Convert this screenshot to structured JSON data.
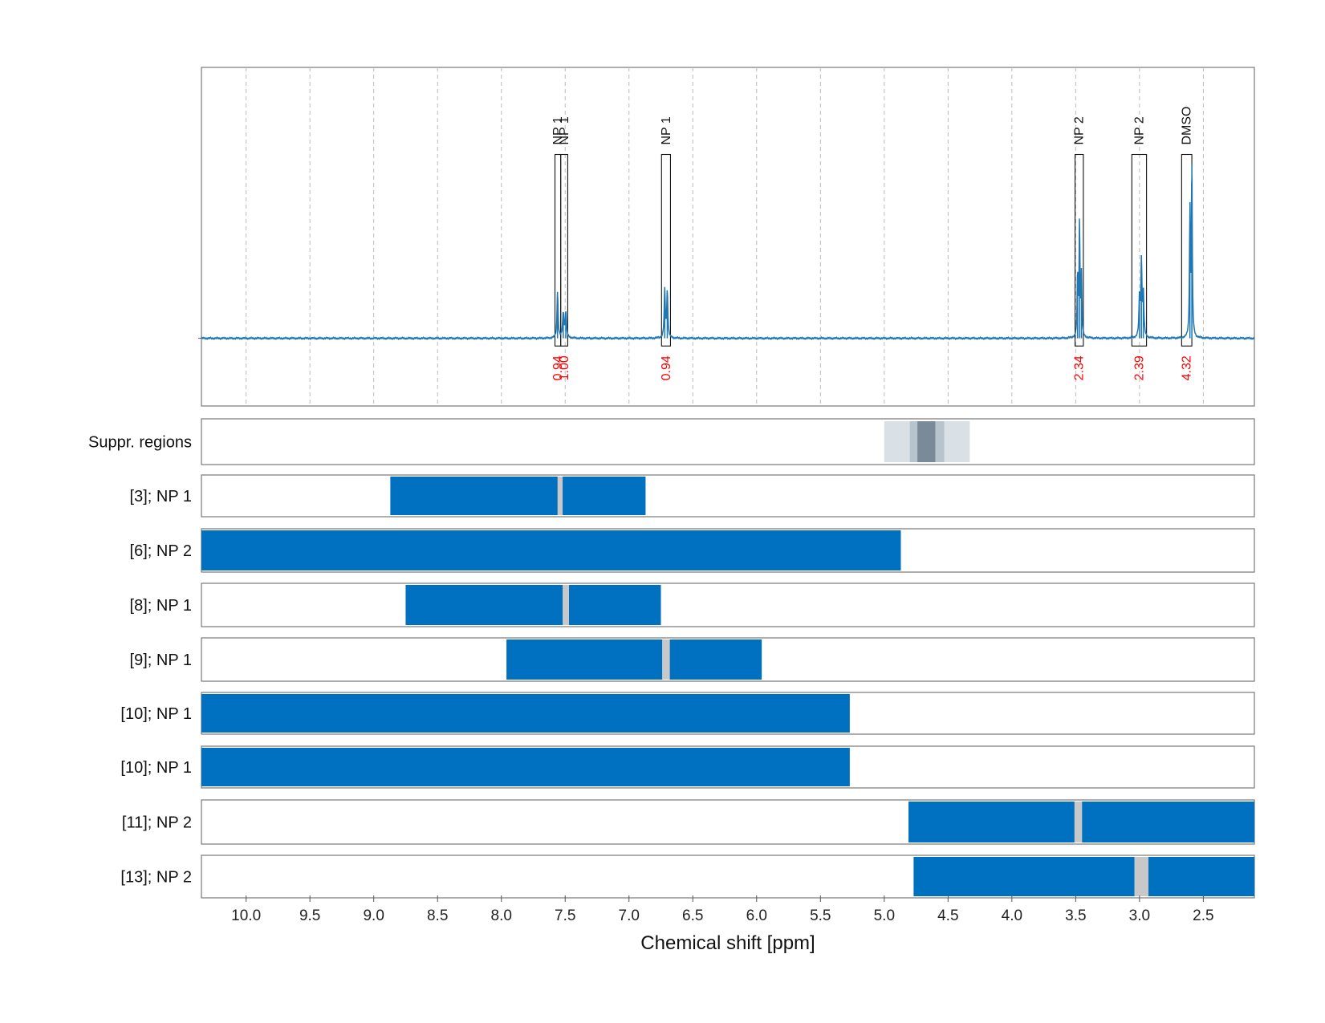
{
  "chart_data": {
    "type": "nmr-spectrum-with-region-tracks",
    "xlabel": "Chemical shift [ppm]",
    "xlim": [
      10.35,
      2.1
    ],
    "x_reversed": true,
    "x_ticks": [
      10.0,
      9.5,
      9.0,
      8.5,
      8.0,
      7.5,
      7.0,
      6.5,
      6.0,
      5.5,
      5.0,
      4.5,
      4.0,
      3.5,
      3.0,
      2.5
    ],
    "x_tick_labels": [
      "10.0",
      "9.5",
      "9.0",
      "8.5",
      "8.0",
      "7.5",
      "7.0",
      "6.5",
      "6.0",
      "5.5",
      "5.0",
      "4.5",
      "4.0",
      "3.5",
      "3.0",
      "2.5"
    ],
    "grid": true,
    "colors": {
      "spectrum": "#1f77b4",
      "track_fill": "#0070c0",
      "gap_fill": "#c8c8c8",
      "integral_text": "#ff0000",
      "suppr_outer": "#d9e0e6",
      "suppr_mid": "#b8c4cd",
      "suppr_inner": "#7a8a99"
    },
    "spectrum": {
      "baseline": 0,
      "ylim": [
        -0.35,
        1.4
      ],
      "peaks": [
        {
          "ppm": 7.56,
          "height": 0.24,
          "width": 0.005
        },
        {
          "ppm": 7.515,
          "height": 0.13,
          "width": 0.006
        },
        {
          "ppm": 7.495,
          "height": 0.13,
          "width": 0.006
        },
        {
          "ppm": 6.72,
          "height": 0.25,
          "width": 0.005
        },
        {
          "ppm": 6.7,
          "height": 0.24,
          "width": 0.005
        },
        {
          "ppm": 3.485,
          "height": 0.33,
          "width": 0.004
        },
        {
          "ppm": 3.47,
          "height": 0.6,
          "width": 0.004
        },
        {
          "ppm": 3.455,
          "height": 0.32,
          "width": 0.004
        },
        {
          "ppm": 3.0,
          "height": 0.21,
          "width": 0.005
        },
        {
          "ppm": 2.985,
          "height": 0.39,
          "width": 0.005
        },
        {
          "ppm": 2.97,
          "height": 0.22,
          "width": 0.005
        },
        {
          "ppm": 2.605,
          "height": 0.65,
          "width": 0.004
        },
        {
          "ppm": 2.59,
          "height": 0.9,
          "width": 0.004
        }
      ],
      "annotations": [
        {
          "label": "NP 1",
          "range": [
            7.58,
            7.535
          ],
          "integral": "0.94"
        },
        {
          "label": "NP 1",
          "range": [
            7.535,
            7.48
          ],
          "integral": "1.00"
        },
        {
          "label": "NP 1",
          "range": [
            6.745,
            6.675
          ],
          "integral": "0.94"
        },
        {
          "label": "NP 2",
          "range": [
            3.505,
            3.44
          ],
          "integral": "2.34"
        },
        {
          "label": "NP 2",
          "range": [
            3.06,
            2.945
          ],
          "integral": "2.39"
        },
        {
          "label": "DMSO",
          "range": [
            2.67,
            2.59
          ],
          "integral": "4.32"
        }
      ]
    },
    "tracks": [
      {
        "label": "Suppr. regions",
        "kind": "suppression",
        "bands": [
          {
            "range": [
              5.0,
              4.33
            ],
            "shade": "outer"
          },
          {
            "range": [
              4.8,
              4.53
            ],
            "shade": "mid"
          },
          {
            "range": [
              4.74,
              4.6
            ],
            "shade": "inner"
          }
        ]
      },
      {
        "label": "[3]; NP 1",
        "range": [
          8.87,
          6.87
        ],
        "gaps": [
          [
            7.56,
            7.52
          ]
        ]
      },
      {
        "label": "[6]; NP 2",
        "range": [
          10.35,
          4.87
        ],
        "gaps": []
      },
      {
        "label": "[8]; NP 1",
        "range": [
          8.75,
          6.75
        ],
        "gaps": [
          [
            7.52,
            7.47
          ]
        ]
      },
      {
        "label": "[9]; NP 1",
        "range": [
          7.96,
          5.96
        ],
        "gaps": [
          [
            6.74,
            6.68
          ]
        ]
      },
      {
        "label": "[10]; NP 1",
        "range": [
          10.35,
          5.27
        ],
        "gaps": []
      },
      {
        "label": "[10]; NP 1",
        "range": [
          10.35,
          5.27
        ],
        "gaps": []
      },
      {
        "label": "[11]; NP 2",
        "range": [
          4.81,
          2.1
        ],
        "gaps": [
          [
            3.51,
            3.45
          ]
        ]
      },
      {
        "label": "[13]; NP 2",
        "range": [
          4.77,
          2.1
        ],
        "gaps": [
          [
            3.04,
            2.93
          ]
        ]
      }
    ]
  }
}
